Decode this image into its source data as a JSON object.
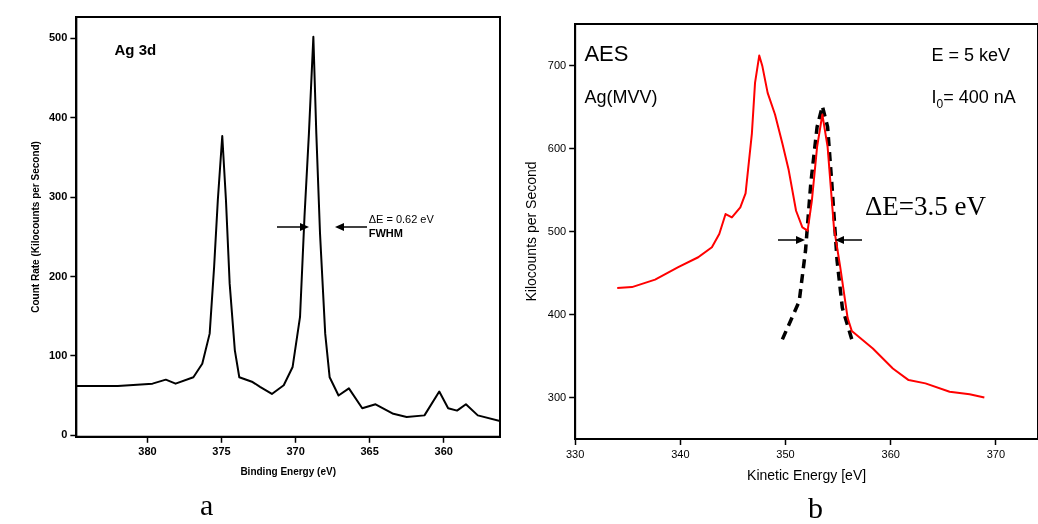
{
  "chart_data": [
    {
      "type": "line",
      "xlabel": "Binding Energy (eV)",
      "ylabel": "Count Rate (Kilocounts per Second)",
      "marker": "none",
      "xlim": [
        384.8,
        356.2
      ],
      "ylim": [
        -2,
        527
      ],
      "xticks": [
        380,
        375,
        370,
        365,
        360
      ],
      "yticks": [
        0,
        100,
        200,
        300,
        400,
        500
      ],
      "series": [
        {
          "color": "#000000",
          "x": [
            384.8,
            382,
            379.66,
            378.76,
            378.1,
            376.9,
            376.3,
            375.8,
            375.5,
            375.25,
            374.95,
            374.7,
            374.45,
            374.1,
            373.8,
            372.9,
            372.4,
            371.6,
            370.8,
            370.2,
            369.7,
            369.4,
            369.1,
            368.8,
            368.6,
            368.35,
            368.0,
            367.7,
            367.1,
            366.4,
            365.5,
            364.6,
            363.4,
            362.5,
            361.3,
            360.3,
            359.7,
            359.1,
            358.5,
            357.7,
            356.2
          ],
          "values": [
            62,
            62,
            65,
            70,
            65,
            73,
            90,
            128,
            212,
            296,
            377,
            296,
            191,
            107,
            73,
            67,
            61,
            52,
            63,
            86,
            149,
            275,
            380,
            502,
            380,
            254,
            128,
            73,
            50,
            59,
            34,
            39,
            27,
            23,
            25,
            55,
            34,
            31,
            39,
            25,
            18
          ]
        }
      ],
      "annotations": [
        "Ag 3d",
        "ΔE = 0.62 eV",
        "FWHM",
        "a"
      ]
    },
    {
      "type": "line",
      "xlabel": "Kinetic Energy [eV]",
      "ylabel": "Kilocounts per Second",
      "marker": "none",
      "xlim": [
        330,
        374
      ],
      "ylim": [
        250,
        750
      ],
      "xticks": [
        330,
        340,
        350,
        360,
        370
      ],
      "yticks": [
        300,
        400,
        500,
        600,
        700
      ],
      "series": [
        {
          "color": "#ff0000",
          "x": [
            334.0,
            335.4,
            337.6,
            339.8,
            341.7,
            343.0,
            343.7,
            344.3,
            344.9,
            345.7,
            346.2,
            346.8,
            347.1,
            347.5,
            347.8,
            348.3,
            349.0,
            349.7,
            350.3,
            351.0,
            351.6,
            352.1,
            352.5,
            353.0,
            353.5,
            354.0,
            354.6,
            355.2,
            355.9,
            356.3,
            358.3,
            360.2,
            361.7,
            363.3,
            365.6,
            367.5,
            368.9
          ],
          "values": [
            432,
            433,
            442,
            457,
            469,
            481,
            497,
            521,
            517,
            529,
            546,
            618,
            679,
            712,
            699,
            667,
            641,
            606,
            574,
            525,
            505,
            501,
            537,
            602,
            641,
            602,
            505,
            457,
            396,
            380,
            359,
            335,
            321,
            317,
            307,
            304,
            300
          ]
        },
        {
          "color": "#000000",
          "line_style": "dashed",
          "x": [
            349.7,
            351.3,
            351.9,
            352.4,
            353.0,
            353.5,
            354.0,
            354.4,
            354.9,
            355.4,
            356.3
          ],
          "values": [
            370,
            416,
            477,
            558,
            626,
            651,
            626,
            558,
            465,
            408,
            370
          ]
        }
      ],
      "annotations": [
        "AES",
        "Ag(MVV)",
        "E = 5 keV",
        "I$_{0}$= 400 nA",
        "ΔE=3.5 eV",
        "b"
      ]
    }
  ]
}
